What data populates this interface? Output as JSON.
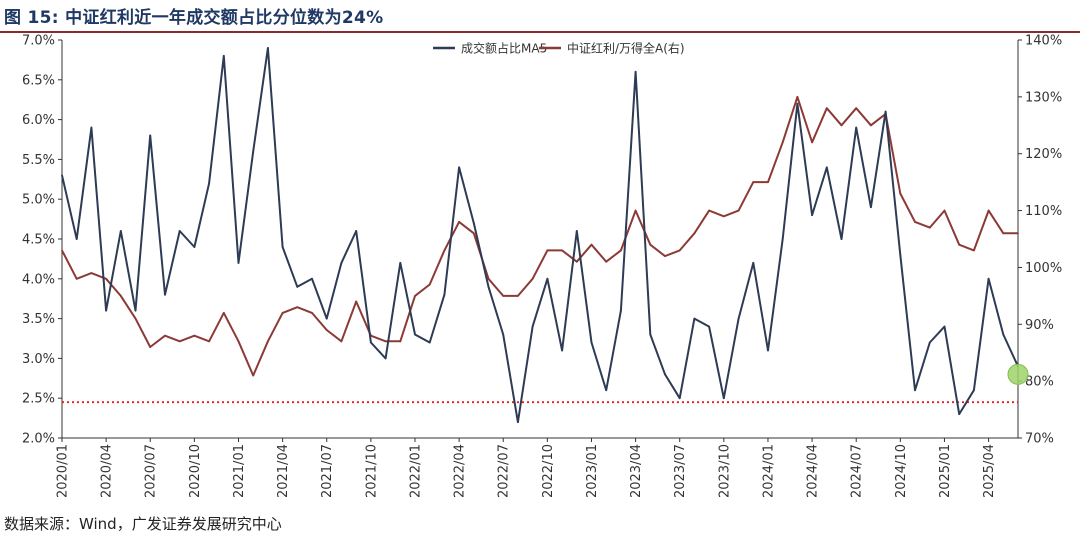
{
  "header": {
    "title": "图 15: 中证红利近一年成交额占比分位数为24%"
  },
  "footer": {
    "source": "数据来源：Wind，广发证券发展研究中心"
  },
  "colors": {
    "title": "#1f3864",
    "rule": "#8b2a2a",
    "series_ma5": "#2e3b55",
    "series_ratio": "#8c3a36",
    "ref_line": "#e81c1c",
    "marker": "#9fd36b"
  },
  "chart_data": {
    "type": "line",
    "title": "",
    "legend_position": "top-right",
    "x": [
      "2020/01",
      "2020/04",
      "2020/07",
      "2020/10",
      "2021/01",
      "2021/04",
      "2021/07",
      "2021/10",
      "2022/01",
      "2022/04",
      "2022/07",
      "2022/10",
      "2023/01",
      "2023/04",
      "2023/07",
      "2023/10",
      "2024/01",
      "2024/04",
      "2024/07",
      "2024/10",
      "2025/01",
      "2025/04"
    ],
    "xlim": [
      "2020/01",
      "2025/06"
    ],
    "y_left": {
      "ticks": [
        "2.0%",
        "2.5%",
        "3.0%",
        "3.5%",
        "4.0%",
        "4.5%",
        "5.0%",
        "5.5%",
        "6.0%",
        "6.5%",
        "7.0%"
      ],
      "ylim": [
        2.0,
        7.0
      ],
      "unit": "%"
    },
    "y_right": {
      "ticks": [
        "70%",
        "80%",
        "90%",
        "100%",
        "110%",
        "120%",
        "130%",
        "140%"
      ],
      "ylim": [
        70,
        140
      ],
      "unit": "%"
    },
    "series": [
      {
        "name": "成交额占比MA5",
        "axis": "left",
        "points": [
          [
            "2020/01",
            5.3
          ],
          [
            "2020/02",
            4.5
          ],
          [
            "2020/03",
            5.9
          ],
          [
            "2020/04",
            3.6
          ],
          [
            "2020/05",
            4.6
          ],
          [
            "2020/06",
            3.6
          ],
          [
            "2020/07",
            5.8
          ],
          [
            "2020/08",
            3.8
          ],
          [
            "2020/09",
            4.6
          ],
          [
            "2020/10",
            4.4
          ],
          [
            "2020/11",
            5.2
          ],
          [
            "2020/12",
            6.8
          ],
          [
            "2021/01",
            4.2
          ],
          [
            "2021/02",
            5.6
          ],
          [
            "2021/03",
            6.9
          ],
          [
            "2021/04",
            4.4
          ],
          [
            "2021/05",
            3.9
          ],
          [
            "2021/06",
            4.0
          ],
          [
            "2021/07",
            3.5
          ],
          [
            "2021/08",
            4.2
          ],
          [
            "2021/09",
            4.6
          ],
          [
            "2021/10",
            3.2
          ],
          [
            "2021/11",
            3.0
          ],
          [
            "2021/12",
            4.2
          ],
          [
            "2022/01",
            3.3
          ],
          [
            "2022/02",
            3.2
          ],
          [
            "2022/03",
            3.8
          ],
          [
            "2022/04",
            5.4
          ],
          [
            "2022/05",
            4.7
          ],
          [
            "2022/06",
            3.9
          ],
          [
            "2022/07",
            3.3
          ],
          [
            "2022/08",
            2.2
          ],
          [
            "2022/09",
            3.4
          ],
          [
            "2022/10",
            4.0
          ],
          [
            "2022/11",
            3.1
          ],
          [
            "2022/12",
            4.6
          ],
          [
            "2023/01",
            3.2
          ],
          [
            "2023/02",
            2.6
          ],
          [
            "2023/03",
            3.6
          ],
          [
            "2023/04",
            6.6
          ],
          [
            "2023/05",
            3.3
          ],
          [
            "2023/06",
            2.8
          ],
          [
            "2023/07",
            2.5
          ],
          [
            "2023/08",
            3.5
          ],
          [
            "2023/09",
            3.4
          ],
          [
            "2023/10",
            2.5
          ],
          [
            "2023/11",
            3.5
          ],
          [
            "2023/12",
            4.2
          ],
          [
            "2024/01",
            3.1
          ],
          [
            "2024/02",
            4.5
          ],
          [
            "2024/03",
            6.2
          ],
          [
            "2024/04",
            4.8
          ],
          [
            "2024/05",
            5.4
          ],
          [
            "2024/06",
            4.5
          ],
          [
            "2024/07",
            5.9
          ],
          [
            "2024/08",
            4.9
          ],
          [
            "2024/09",
            6.1
          ],
          [
            "2024/10",
            4.3
          ],
          [
            "2024/11",
            2.6
          ],
          [
            "2024/12",
            3.2
          ],
          [
            "2025/01",
            3.4
          ],
          [
            "2025/02",
            2.3
          ],
          [
            "2025/03",
            2.6
          ],
          [
            "2025/04",
            4.0
          ],
          [
            "2025/05",
            3.3
          ],
          [
            "2025/06",
            2.9
          ]
        ]
      },
      {
        "name": "中证红利/万得全A(右)",
        "axis": "right",
        "points": [
          [
            "2020/01",
            103
          ],
          [
            "2020/02",
            98
          ],
          [
            "2020/03",
            99
          ],
          [
            "2020/04",
            98
          ],
          [
            "2020/05",
            95
          ],
          [
            "2020/06",
            91
          ],
          [
            "2020/07",
            86
          ],
          [
            "2020/08",
            88
          ],
          [
            "2020/09",
            87
          ],
          [
            "2020/10",
            88
          ],
          [
            "2020/11",
            87
          ],
          [
            "2020/12",
            92
          ],
          [
            "2021/01",
            87
          ],
          [
            "2021/02",
            81
          ],
          [
            "2021/03",
            87
          ],
          [
            "2021/04",
            92
          ],
          [
            "2021/05",
            93
          ],
          [
            "2021/06",
            92
          ],
          [
            "2021/07",
            89
          ],
          [
            "2021/08",
            87
          ],
          [
            "2021/09",
            94
          ],
          [
            "2021/10",
            88
          ],
          [
            "2021/11",
            87
          ],
          [
            "2021/12",
            87
          ],
          [
            "2022/01",
            95
          ],
          [
            "2022/02",
            97
          ],
          [
            "2022/03",
            103
          ],
          [
            "2022/04",
            108
          ],
          [
            "2022/05",
            106
          ],
          [
            "2022/06",
            98
          ],
          [
            "2022/07",
            95
          ],
          [
            "2022/08",
            95
          ],
          [
            "2022/09",
            98
          ],
          [
            "2022/10",
            103
          ],
          [
            "2022/11",
            103
          ],
          [
            "2022/12",
            101
          ],
          [
            "2023/01",
            104
          ],
          [
            "2023/02",
            101
          ],
          [
            "2023/03",
            103
          ],
          [
            "2023/04",
            110
          ],
          [
            "2023/05",
            104
          ],
          [
            "2023/06",
            102
          ],
          [
            "2023/07",
            103
          ],
          [
            "2023/08",
            106
          ],
          [
            "2023/09",
            110
          ],
          [
            "2023/10",
            109
          ],
          [
            "2023/11",
            110
          ],
          [
            "2023/12",
            115
          ],
          [
            "2024/01",
            115
          ],
          [
            "2024/02",
            122
          ],
          [
            "2024/03",
            130
          ],
          [
            "2024/04",
            122
          ],
          [
            "2024/05",
            128
          ],
          [
            "2024/06",
            125
          ],
          [
            "2024/07",
            128
          ],
          [
            "2024/08",
            125
          ],
          [
            "2024/09",
            127
          ],
          [
            "2024/10",
            113
          ],
          [
            "2024/11",
            108
          ],
          [
            "2024/12",
            107
          ],
          [
            "2025/01",
            110
          ],
          [
            "2025/02",
            104
          ],
          [
            "2025/03",
            103
          ],
          [
            "2025/04",
            110
          ],
          [
            "2025/05",
            106
          ],
          [
            "2025/06",
            106
          ]
        ]
      }
    ],
    "reference_line": {
      "axis": "left",
      "value": 2.45,
      "style": "dotted"
    },
    "marker_point": {
      "x": "2025/06",
      "y": 2.8,
      "axis": "left"
    }
  }
}
